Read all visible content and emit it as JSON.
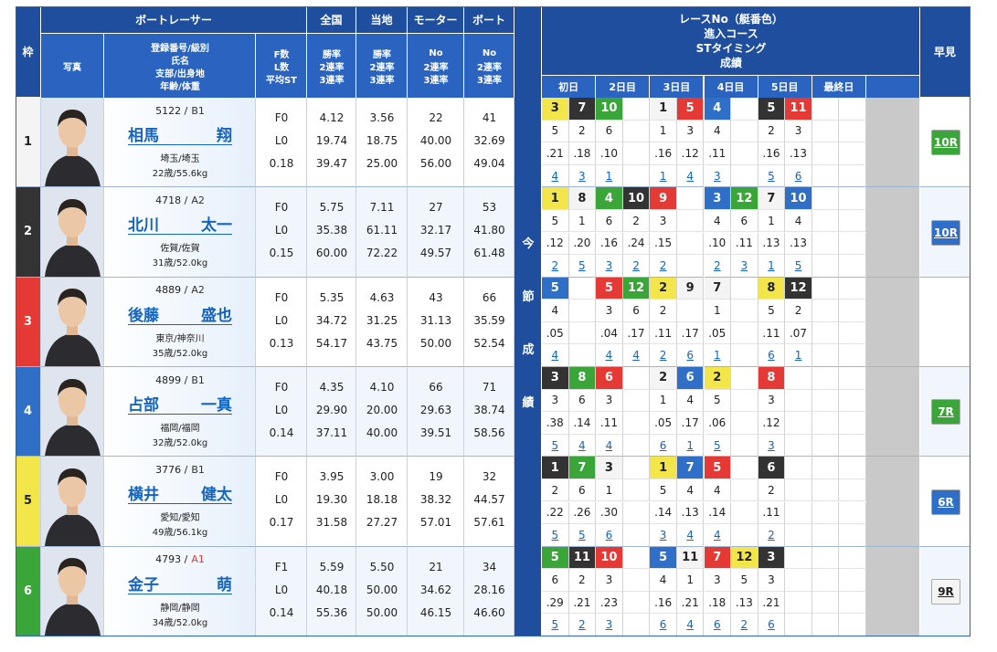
{
  "header": {
    "waku": "枠",
    "racer": "ボートレーサー",
    "national": "全国",
    "local": "当地",
    "motor": "モーター",
    "boat": "ボート",
    "photo": "写真",
    "info": [
      "登録番号/級別",
      "氏名",
      "支部/出身地",
      "年齢/体重"
    ],
    "fls": [
      "F数",
      "L数",
      "平均ST"
    ],
    "rates_national": [
      "勝率",
      "2連率",
      "3連率"
    ],
    "rates_local": [
      "勝率",
      "2連率",
      "3連率"
    ],
    "motor_sub": [
      "No",
      "2連率",
      "3連率"
    ],
    "boat_sub": [
      "No",
      "2連率",
      "3連率"
    ],
    "results": [
      "レースNo（艇番色）",
      "進入コース",
      "STタイミング",
      "成績"
    ],
    "days": [
      "初日",
      "2日目",
      "3日目",
      "4日目",
      "5日目",
      "最終日"
    ],
    "session": [
      "今",
      "節",
      "成",
      "績"
    ],
    "quick": "早見"
  },
  "racers": [
    {
      "waku": "1",
      "color": "white",
      "reg": "5122 /",
      "class": "B1",
      "class_color": "dark",
      "surname": "相馬",
      "given": "翔",
      "home": "埼玉/埼玉",
      "age": "22歳/55.6kg",
      "f": "F0",
      "l": "L0",
      "st": "0.18",
      "national": [
        "4.12",
        "19.74",
        "39.47"
      ],
      "local": [
        "3.56",
        "18.75",
        "25.00"
      ],
      "motor": [
        "22",
        "40.00",
        "56.00"
      ],
      "boat": [
        "41",
        "32.69",
        "49.04"
      ],
      "races": [
        "3",
        "7",
        "10",
        null,
        "1",
        "5",
        "4",
        null,
        "5",
        "11",
        null,
        null
      ],
      "race_colors": [
        "yellow",
        "black",
        "green",
        null,
        "white",
        "red",
        "blue",
        null,
        "black",
        "red",
        null,
        null
      ],
      "courses": [
        "5",
        "2",
        "6",
        null,
        "1",
        "3",
        "4",
        null,
        "2",
        "3",
        null,
        null
      ],
      "sts": [
        ".21",
        ".18",
        ".10",
        null,
        ".16",
        ".12",
        ".11",
        null,
        ".16",
        ".13",
        null,
        null
      ],
      "results": [
        "4",
        "3",
        "1",
        null,
        "1",
        "4",
        "3",
        null,
        "5",
        "6",
        null,
        null
      ],
      "quick": {
        "label": "10R",
        "color": "green"
      }
    },
    {
      "waku": "2",
      "color": "black",
      "reg": "4718 /",
      "class": "A2",
      "class_color": "dark",
      "surname": "北川",
      "given": "太一",
      "home": "佐賀/佐賀",
      "age": "31歳/52.0kg",
      "f": "F0",
      "l": "L0",
      "st": "0.15",
      "national": [
        "5.75",
        "35.38",
        "60.00"
      ],
      "local": [
        "7.11",
        "61.11",
        "72.22"
      ],
      "motor": [
        "27",
        "32.17",
        "49.57"
      ],
      "boat": [
        "53",
        "41.80",
        "61.48"
      ],
      "races": [
        "1",
        "8",
        "4",
        "10",
        "9",
        null,
        "3",
        "12",
        "7",
        "10",
        null,
        null
      ],
      "race_colors": [
        "yellow",
        "white",
        "green",
        "black",
        "red",
        null,
        "blue",
        "green",
        "white",
        "blue",
        null,
        null
      ],
      "courses": [
        "5",
        "1",
        "6",
        "2",
        "3",
        null,
        "4",
        "6",
        "1",
        "4",
        null,
        null
      ],
      "sts": [
        ".12",
        ".20",
        ".16",
        ".24",
        ".15",
        null,
        ".10",
        ".11",
        ".13",
        ".13",
        null,
        null
      ],
      "results": [
        "2",
        "5",
        "3",
        "2",
        "2",
        null,
        "2",
        "3",
        "1",
        "5",
        null,
        null
      ],
      "quick": {
        "label": "10R",
        "color": "blue"
      }
    },
    {
      "waku": "3",
      "color": "red",
      "reg": "4889 /",
      "class": "A2",
      "class_color": "dark",
      "surname": "後藤",
      "given": "盛也",
      "home": "東京/神奈川",
      "age": "35歳/52.0kg",
      "f": "F0",
      "l": "L0",
      "st": "0.13",
      "national": [
        "5.35",
        "34.72",
        "54.17"
      ],
      "local": [
        "4.63",
        "31.25",
        "43.75"
      ],
      "motor": [
        "43",
        "31.13",
        "50.00"
      ],
      "boat": [
        "66",
        "35.59",
        "52.54"
      ],
      "races": [
        "5",
        null,
        "5",
        "12",
        "2",
        "9",
        "7",
        null,
        "8",
        "12",
        null,
        null
      ],
      "race_colors": [
        "blue",
        null,
        "red",
        "green",
        "yellow",
        "white",
        "white",
        null,
        "yellow",
        "black",
        null,
        null
      ],
      "courses": [
        "4",
        null,
        "3",
        "6",
        "2",
        null,
        "1",
        null,
        "5",
        "2",
        null,
        null
      ],
      "sts": [
        ".05",
        null,
        ".04",
        ".17",
        ".11",
        ".17",
        ".05",
        null,
        ".11",
        ".07",
        null,
        null
      ],
      "results": [
        "4",
        null,
        "4",
        "4",
        "2",
        "6",
        "1",
        null,
        "6",
        "1",
        null,
        null
      ],
      "quick": null
    },
    {
      "waku": "4",
      "color": "blue",
      "reg": "4899 /",
      "class": "B1",
      "class_color": "dark",
      "surname": "占部",
      "given": "一真",
      "home": "福岡/福岡",
      "age": "32歳/52.0kg",
      "f": "F0",
      "l": "L0",
      "st": "0.14",
      "national": [
        "4.35",
        "29.90",
        "37.11"
      ],
      "local": [
        "4.10",
        "20.00",
        "40.00"
      ],
      "motor": [
        "66",
        "29.63",
        "39.51"
      ],
      "boat": [
        "71",
        "38.74",
        "58.56"
      ],
      "races": [
        "3",
        "8",
        "6",
        null,
        "2",
        "6",
        "2",
        null,
        "8",
        null,
        null,
        null
      ],
      "race_colors": [
        "black",
        "green",
        "red",
        null,
        "white",
        "blue",
        "yellow",
        null,
        "red",
        null,
        null,
        null
      ],
      "courses": [
        "3",
        "6",
        "3",
        null,
        "1",
        "4",
        "5",
        null,
        "3",
        null,
        null,
        null
      ],
      "sts": [
        ".38",
        ".14",
        ".11",
        null,
        ".05",
        ".17",
        ".06",
        null,
        ".12",
        null,
        null,
        null
      ],
      "results": [
        "5",
        "4",
        "4",
        null,
        "6",
        "1",
        "5",
        null,
        "3",
        null,
        null,
        null
      ],
      "quick": {
        "label": "7R",
        "color": "green"
      }
    },
    {
      "waku": "5",
      "color": "yellow",
      "reg": "3776 /",
      "class": "B1",
      "class_color": "dark",
      "surname": "横井",
      "given": "健太",
      "home": "愛知/愛知",
      "age": "49歳/56.1kg",
      "f": "F0",
      "l": "L0",
      "st": "0.17",
      "national": [
        "3.95",
        "19.30",
        "31.58"
      ],
      "local": [
        "3.00",
        "18.18",
        "27.27"
      ],
      "motor": [
        "19",
        "38.32",
        "57.01"
      ],
      "boat": [
        "32",
        "44.57",
        "57.61"
      ],
      "races": [
        "1",
        "7",
        "3",
        null,
        "1",
        "7",
        "5",
        null,
        "6",
        null,
        null,
        null
      ],
      "race_colors": [
        "black",
        "green",
        "white",
        null,
        "yellow",
        "blue",
        "red",
        null,
        "black",
        null,
        null,
        null
      ],
      "courses": [
        "2",
        "6",
        "1",
        null,
        "5",
        "4",
        "4",
        null,
        "2",
        null,
        null,
        null
      ],
      "sts": [
        ".22",
        ".26",
        ".30",
        null,
        ".14",
        ".13",
        ".14",
        null,
        ".11",
        null,
        null,
        null
      ],
      "results": [
        "5",
        "5",
        "6",
        null,
        "3",
        "4",
        "4",
        null,
        "2",
        null,
        null,
        null
      ],
      "quick": {
        "label": "6R",
        "color": "blue"
      }
    },
    {
      "waku": "6",
      "color": "green",
      "reg": "4793 /",
      "class": "A1",
      "class_color": "red",
      "surname": "金子",
      "given": "萌",
      "home": "静岡/静岡",
      "age": "34歳/52.0kg",
      "f": "F1",
      "l": "L0",
      "st": "0.14",
      "national": [
        "5.59",
        "40.18",
        "55.36"
      ],
      "local": [
        "5.50",
        "50.00",
        "50.00"
      ],
      "motor": [
        "21",
        "34.62",
        "46.15"
      ],
      "boat": [
        "34",
        "28.16",
        "46.60"
      ],
      "races": [
        "5",
        "11",
        "10",
        null,
        "5",
        "11",
        "7",
        "12",
        "3",
        null,
        null,
        null
      ],
      "race_colors": [
        "green",
        "black",
        "red",
        null,
        "blue",
        "white",
        "red",
        "yellow",
        "black",
        null,
        null,
        null
      ],
      "courses": [
        "6",
        "2",
        "3",
        null,
        "4",
        "1",
        "3",
        "5",
        "3",
        null,
        null,
        null
      ],
      "sts": [
        ".29",
        ".21",
        ".23",
        null,
        ".16",
        ".21",
        ".18",
        ".13",
        ".21",
        null,
        null,
        null
      ],
      "results": [
        "5",
        "2",
        "3",
        null,
        "6",
        "4",
        "6",
        "2",
        "6",
        null,
        null,
        null
      ],
      "quick": {
        "label": "9R",
        "color": "white"
      }
    }
  ]
}
